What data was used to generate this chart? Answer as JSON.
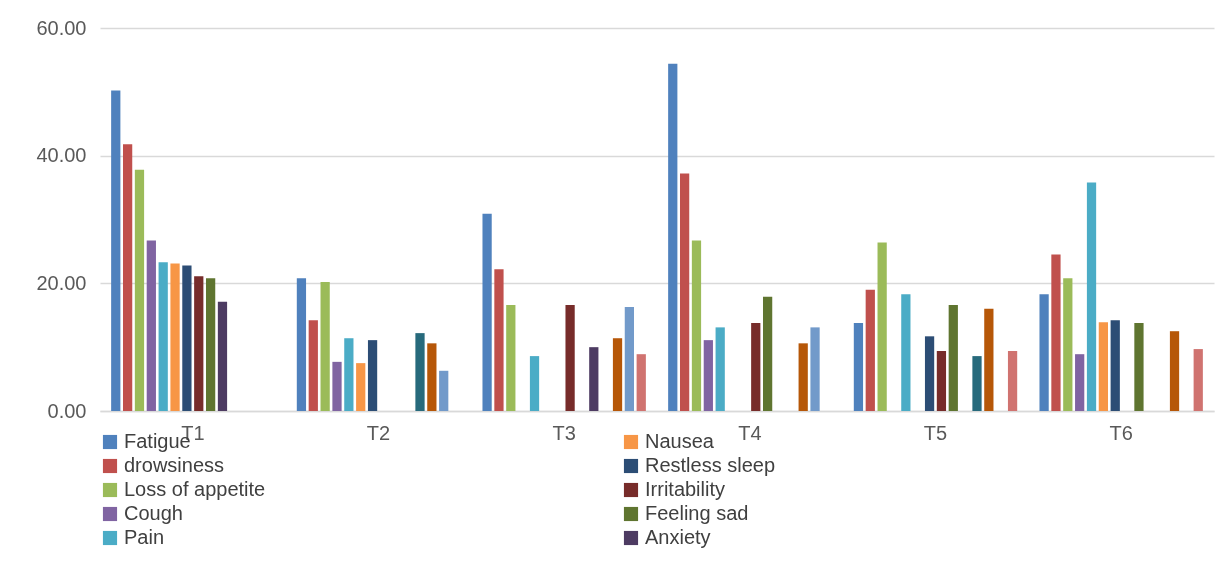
{
  "chart_data": {
    "type": "bar",
    "categories": [
      "T1",
      "T2",
      "T3",
      "T4",
      "T5",
      "T6"
    ],
    "series": [
      {
        "name": "Fatigue",
        "color": "#4f81bd",
        "values": [
          50.2,
          20.8,
          30.9,
          54.4,
          13.8,
          18.3
        ]
      },
      {
        "name": "drowsiness",
        "color": "#c0504d",
        "values": [
          41.8,
          14.2,
          22.2,
          37.2,
          19.0,
          24.5
        ]
      },
      {
        "name": "Loss of appetite",
        "color": "#9bbb59",
        "values": [
          37.8,
          20.2,
          16.6,
          26.7,
          26.4,
          20.8
        ]
      },
      {
        "name": "Cough",
        "color": "#8064a2",
        "values": [
          26.7,
          7.7,
          null,
          11.1,
          null,
          8.9
        ]
      },
      {
        "name": "Pain",
        "color": "#4bacc6",
        "values": [
          23.3,
          11.4,
          8.6,
          13.1,
          18.3,
          35.8
        ]
      },
      {
        "name": "Nausea",
        "color": "#f79646",
        "values": [
          23.1,
          7.5,
          null,
          null,
          null,
          13.9
        ]
      },
      {
        "name": "Restless sleep",
        "color": "#2c4d75",
        "values": [
          22.8,
          11.1,
          null,
          null,
          11.7,
          14.2
        ]
      },
      {
        "name": "Irritability",
        "color": "#772c2a",
        "values": [
          21.1,
          null,
          16.6,
          13.8,
          9.4,
          null
        ]
      },
      {
        "name": "Feeling sad",
        "color": "#5f7530",
        "values": [
          20.8,
          null,
          null,
          17.9,
          16.6,
          13.8
        ]
      },
      {
        "name": "Anxiety",
        "color": "#4d3b62",
        "values": [
          17.1,
          null,
          10.0,
          null,
          null,
          null
        ]
      },
      {
        "color": "#276a7c",
        "values": [
          null,
          12.2,
          null,
          null,
          8.6,
          null
        ]
      },
      {
        "color": "#b65708",
        "values": [
          null,
          10.6,
          11.4,
          10.6,
          16.0,
          12.5
        ]
      },
      {
        "color": "#729aca",
        "values": [
          null,
          6.3,
          16.3,
          13.1,
          null,
          null
        ]
      },
      {
        "color": "#d07370",
        "values": [
          null,
          null,
          8.9,
          null,
          9.4,
          9.7
        ]
      }
    ],
    "ylim": [
      0,
      60
    ],
    "yticks": [
      {
        "value": 0,
        "label": "0.00"
      },
      {
        "value": 20,
        "label": "20.00"
      },
      {
        "value": 40,
        "label": "40.00"
      },
      {
        "value": 60,
        "label": "60.00"
      }
    ],
    "grid": "y",
    "legend": "bottom"
  }
}
